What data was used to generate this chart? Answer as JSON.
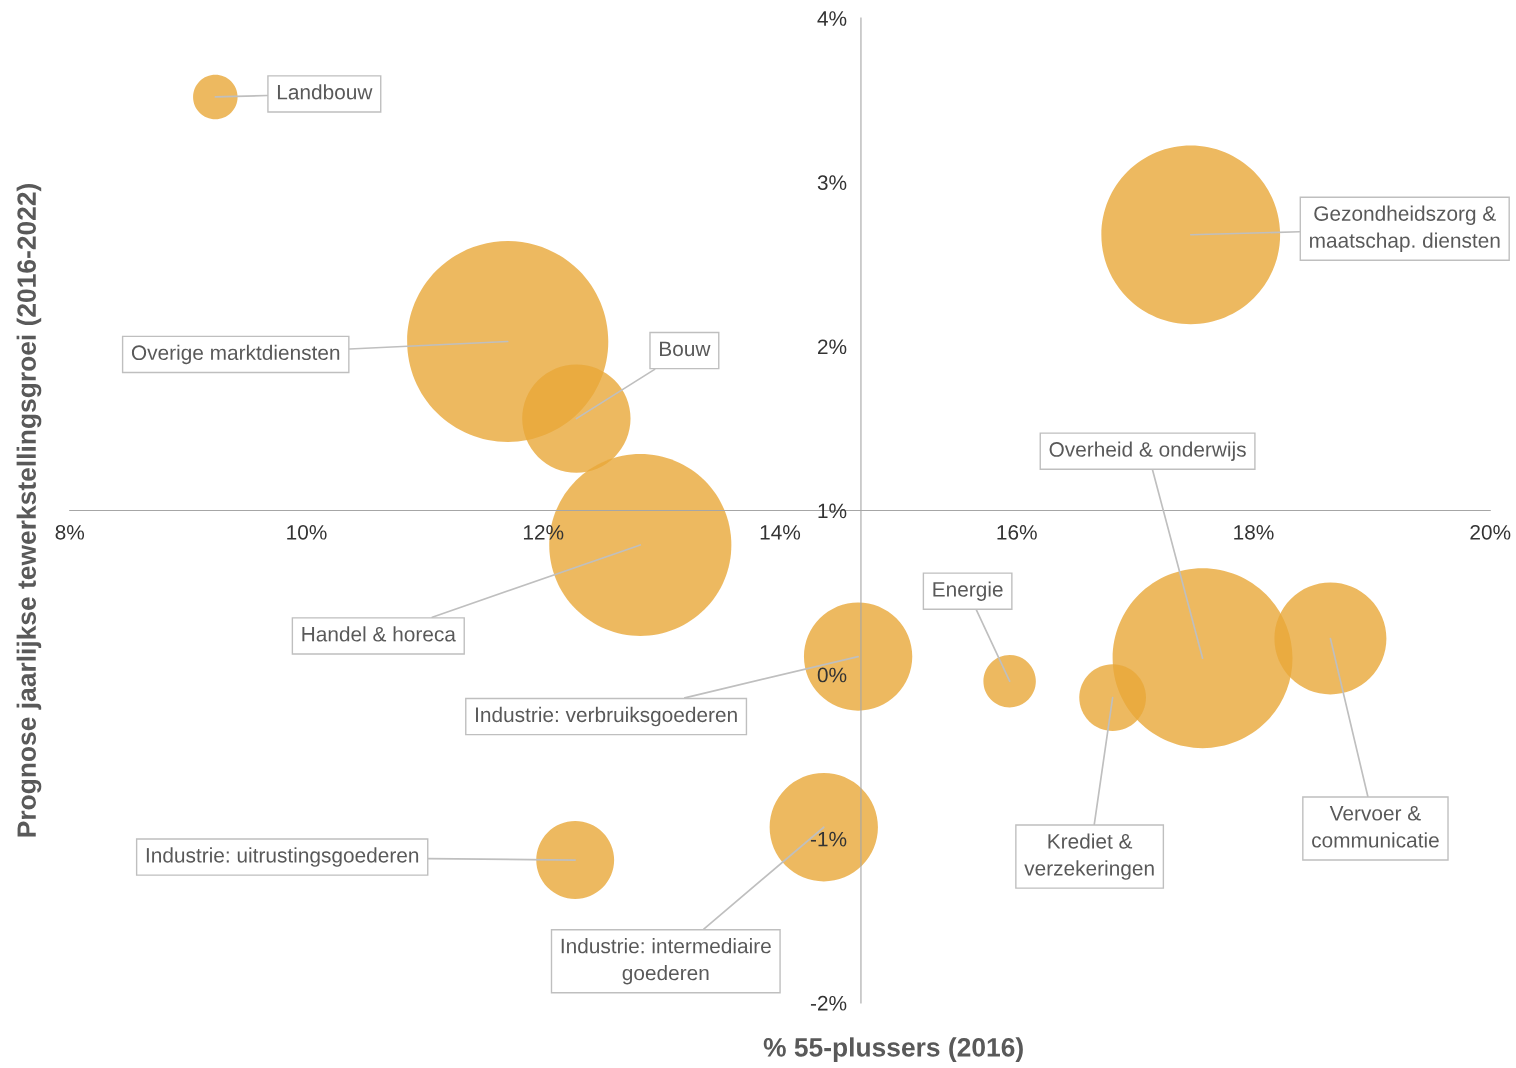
{
  "chart_data": {
    "type": "bubble",
    "xlabel": "% 55-plussers (2016)",
    "ylabel": "Prognose jaarlijkse tewerkstellingsgroei (2016-2022)",
    "series": [
      {
        "color": "#e8a838",
        "x": [
          9.23,
          11.7,
          12.28,
          17.47,
          17.57,
          12.82,
          15.94,
          14.66,
          16.81,
          18.65,
          12.27,
          14.37
        ],
        "values": [
          3.52,
          2.03,
          1.56,
          2.68,
          0.1,
          0.79,
          -0.04,
          0.11,
          -0.14,
          0.22,
          -1.13,
          -0.93
        ],
        "sizes": [
          0.049,
          1,
          0.29,
          0.79,
          0.8,
          0.82,
          0.068,
          0.29,
          0.11,
          0.31,
          0.15,
          0.29
        ]
      }
    ],
    "annotations": [
      {
        "text": "Landbouw",
        "x": 9.23,
        "y": 3.52
      },
      {
        "text": "Overige marktdiensten",
        "x": 11.7,
        "y": 2.03
      },
      {
        "text": "Bouw",
        "x": 12.28,
        "y": 1.56
      },
      {
        "text": "Gezondheidszorg &\nmaatschap. diensten",
        "x": 17.47,
        "y": 2.68
      },
      {
        "text": "Overheid & onderwijs",
        "x": 17.57,
        "y": 0.1
      },
      {
        "text": "Handel & horeca",
        "x": 12.82,
        "y": 0.79
      },
      {
        "text": "Energie",
        "x": 15.94,
        "y": -0.04
      },
      {
        "text": "Industrie: verbruiksgoederen",
        "x": 14.66,
        "y": 0.11
      },
      {
        "text": "Krediet &\nverzekeringen",
        "x": 16.81,
        "y": -0.14
      },
      {
        "text": "Vervoer &\ncommunicatie",
        "x": 18.65,
        "y": 0.22
      },
      {
        "text": "Industrie: uitrustingsgoederen",
        "x": 12.27,
        "y": -1.13
      },
      {
        "text": "Industrie: intermediaire\ngoederen",
        "x": 14.37,
        "y": -0.93
      }
    ],
    "xlim": [
      8,
      20
    ],
    "ylim": [
      -2,
      4
    ],
    "xticks": [
      {
        "value": 8,
        "label": "8%"
      },
      {
        "value": 10,
        "label": "10%"
      },
      {
        "value": 12,
        "label": "12%"
      },
      {
        "value": 14,
        "label": "14%"
      },
      {
        "value": 16,
        "label": "16%"
      },
      {
        "value": 18,
        "label": "18%"
      },
      {
        "value": 20,
        "label": "20%"
      }
    ],
    "yticks": [
      {
        "value": -2,
        "label": "-2%"
      },
      {
        "value": -1,
        "label": "-1%"
      },
      {
        "value": 0,
        "label": "0%"
      },
      {
        "value": 1,
        "label": "1%"
      },
      {
        "value": 2,
        "label": "2%"
      },
      {
        "value": 3,
        "label": "3%"
      },
      {
        "value": 4,
        "label": "4%"
      }
    ],
    "grid": false,
    "legend": false
  }
}
